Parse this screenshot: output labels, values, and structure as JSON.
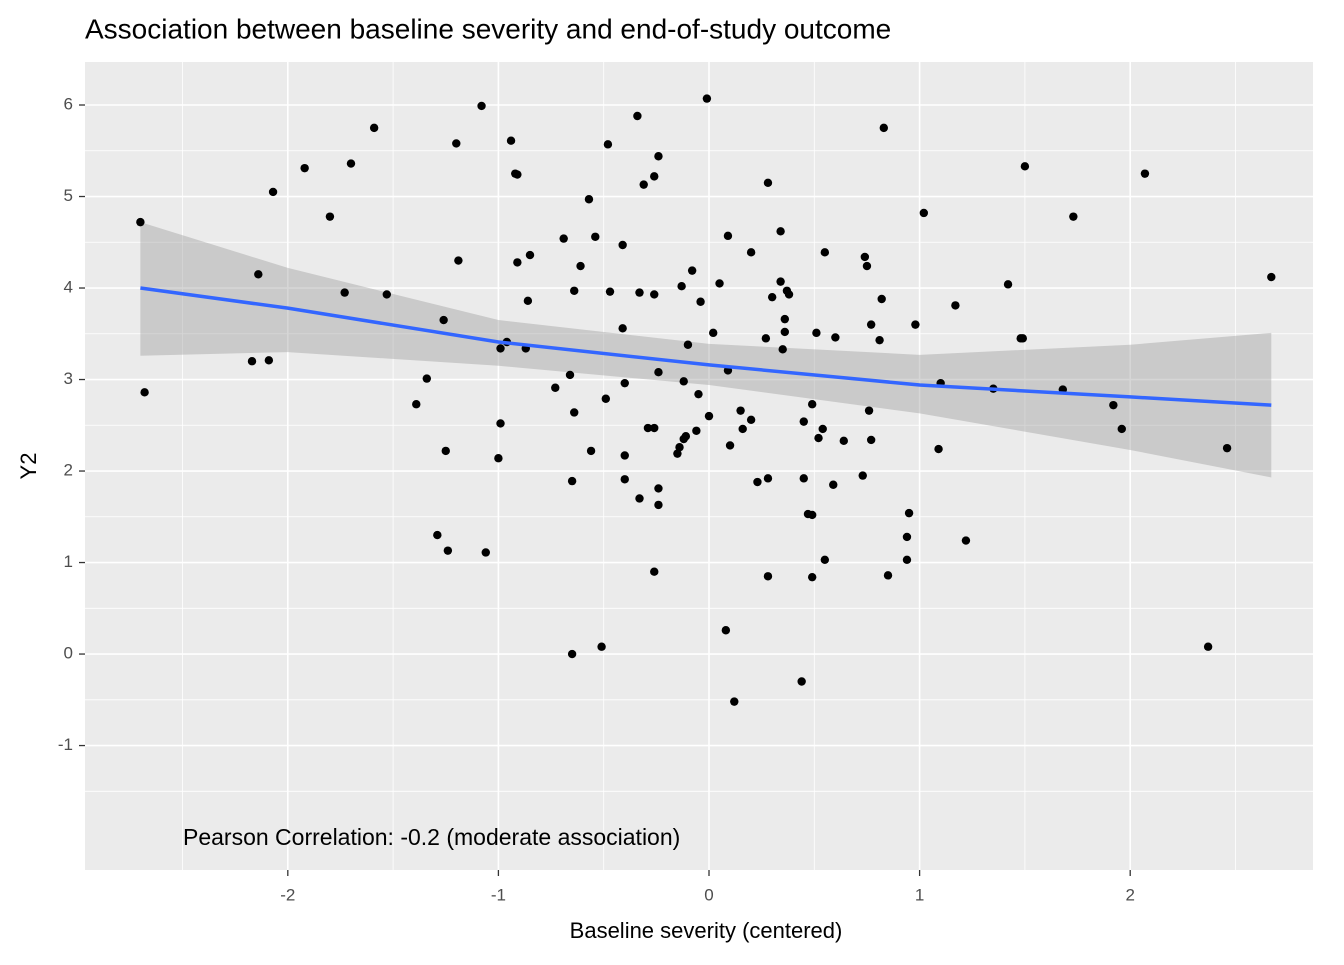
{
  "chart_data": {
    "type": "scatter",
    "title": "Association between baseline severity and end-of-study outcome",
    "xlabel": "Baseline severity (centered)",
    "ylabel": "Y2",
    "annotation": "Pearson Correlation: -0.2 (moderate association)",
    "xlim": [
      -2.963,
      2.868
    ],
    "ylim": [
      -2.36,
      6.47
    ],
    "xticks": [
      -2,
      -1,
      0,
      1,
      2
    ],
    "yticks": [
      -1,
      0,
      1,
      2,
      3,
      4,
      5,
      6
    ],
    "grid": true,
    "point_color": "#000000",
    "x": [
      -2.7,
      -2.68,
      -2.17,
      -2.14,
      -2.09,
      -2.07,
      -1.92,
      -1.8,
      -1.73,
      -1.7,
      -1.59,
      -1.53,
      -1.39,
      -1.34,
      -1.29,
      -1.26,
      -1.25,
      -1.24,
      -1.2,
      -1.19,
      -1.08,
      -1.06,
      -1.0,
      -0.99,
      -0.99,
      -0.96,
      -0.94,
      -0.92,
      -0.91,
      -0.91,
      -0.87,
      -0.86,
      -0.85,
      -0.73,
      -0.69,
      -0.66,
      -0.65,
      -0.65,
      -0.64,
      -0.64,
      -0.61,
      -0.57,
      -0.56,
      -0.54,
      -0.51,
      -0.49,
      -0.48,
      -0.47,
      -0.41,
      -0.41,
      -0.4,
      -0.4,
      -0.4,
      -0.34,
      -0.33,
      -0.33,
      -0.31,
      -0.29,
      -0.26,
      -0.26,
      -0.26,
      -0.26,
      -0.24,
      -0.24,
      -0.24,
      -0.24,
      -0.15,
      -0.14,
      -0.13,
      -0.12,
      -0.12,
      -0.11,
      -0.1,
      -0.08,
      -0.06,
      -0.05,
      -0.04,
      -0.01,
      0.0,
      0.02,
      0.05,
      0.08,
      0.09,
      0.09,
      0.1,
      0.12,
      0.15,
      0.16,
      0.2,
      0.2,
      0.23,
      0.27,
      0.28,
      0.28,
      0.28,
      0.3,
      0.34,
      0.34,
      0.35,
      0.36,
      0.36,
      0.37,
      0.38,
      0.44,
      0.45,
      0.45,
      0.47,
      0.49,
      0.49,
      0.49,
      0.51,
      0.52,
      0.54,
      0.55,
      0.55,
      0.59,
      0.6,
      0.64,
      0.73,
      0.74,
      0.75,
      0.76,
      0.77,
      0.77,
      0.81,
      0.82,
      0.83,
      0.85,
      0.94,
      0.94,
      0.95,
      0.98,
      1.02,
      1.09,
      1.1,
      1.17,
      1.22,
      1.35,
      1.42,
      1.48,
      1.49,
      1.5,
      1.73,
      1.68,
      1.92,
      1.96,
      2.07,
      2.37,
      2.46,
      2.67
    ],
    "y": [
      4.72,
      2.86,
      3.2,
      4.15,
      3.21,
      5.05,
      5.31,
      4.78,
      3.95,
      5.36,
      5.75,
      3.93,
      2.73,
      3.01,
      1.3,
      3.65,
      2.22,
      1.13,
      5.58,
      4.3,
      5.99,
      1.11,
      2.14,
      3.34,
      2.52,
      3.41,
      5.61,
      5.25,
      5.24,
      4.28,
      3.34,
      3.86,
      4.36,
      2.91,
      4.54,
      3.05,
      0.0,
      1.89,
      2.64,
      3.97,
      4.24,
      4.97,
      2.22,
      4.56,
      0.08,
      2.79,
      5.57,
      3.96,
      3.56,
      4.47,
      2.96,
      2.17,
      1.91,
      5.88,
      1.7,
      3.95,
      5.13,
      2.47,
      2.47,
      3.93,
      5.22,
      0.9,
      1.63,
      1.81,
      3.08,
      5.44,
      2.19,
      2.26,
      4.02,
      2.35,
      2.98,
      2.38,
      3.38,
      4.19,
      2.44,
      2.84,
      3.85,
      6.07,
      2.6,
      3.51,
      4.05,
      0.26,
      4.57,
      3.1,
      2.28,
      -0.52,
      2.66,
      2.46,
      2.56,
      4.39,
      1.88,
      3.45,
      5.15,
      0.85,
      1.92,
      3.9,
      4.62,
      4.07,
      3.33,
      3.66,
      3.52,
      3.97,
      3.93,
      -0.3,
      2.54,
      1.92,
      1.53,
      1.52,
      2.73,
      0.84,
      3.51,
      2.36,
      2.46,
      4.39,
      1.03,
      1.85,
      3.46,
      2.33,
      1.95,
      4.34,
      4.24,
      2.66,
      3.6,
      2.34,
      3.43,
      3.88,
      5.75,
      0.86,
      1.03,
      1.28,
      1.54,
      3.6,
      4.82,
      2.24,
      2.96,
      3.81,
      1.24,
      2.9,
      4.04,
      3.45,
      3.45,
      5.33,
      4.78,
      2.89,
      2.72,
      2.46,
      5.25,
      0.08,
      2.25,
      4.12
    ],
    "smooth": {
      "color": "#3366ff",
      "band_color": "#999999",
      "x": [
        -2.7,
        -2,
        -1,
        0,
        1,
        2,
        2.67
      ],
      "y": [
        4.0,
        3.78,
        3.41,
        3.16,
        2.94,
        2.81,
        2.72
      ],
      "ymin": [
        3.26,
        3.3,
        3.15,
        2.94,
        2.63,
        2.23,
        1.93
      ],
      "ymax": [
        4.72,
        4.22,
        3.65,
        3.39,
        3.27,
        3.38,
        3.51
      ]
    }
  }
}
